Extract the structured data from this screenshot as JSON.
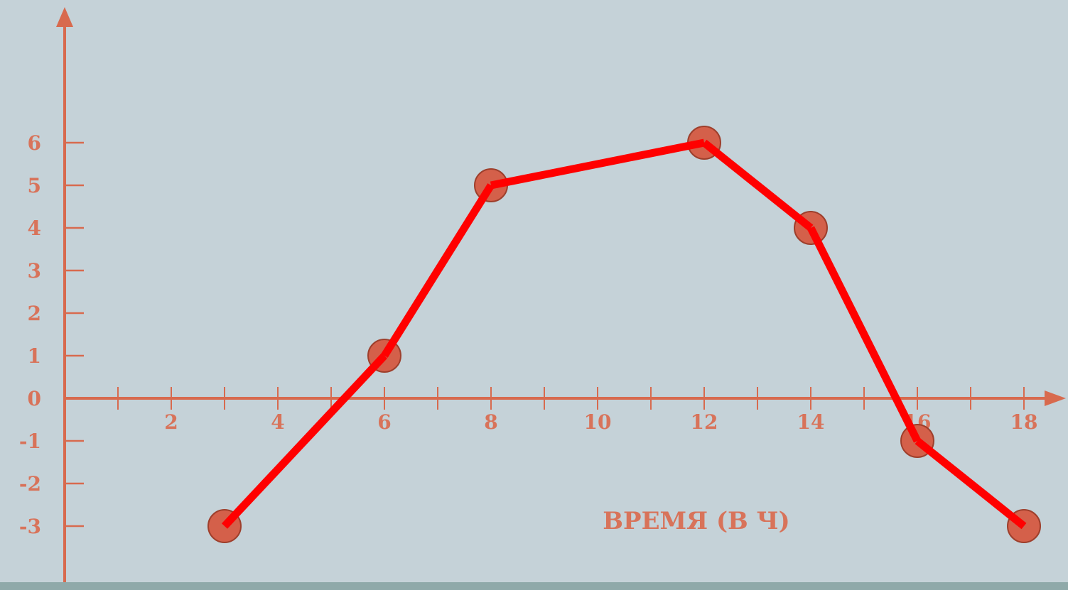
{
  "colors": {
    "background": "#c5d2d8",
    "axis": "#d86a4e",
    "line": "#ff0000",
    "marker_fill": "#d4604a",
    "marker_stroke": "#9e3f2c",
    "text": "#d8735a",
    "bottom_band": "#8fa9a9"
  },
  "chart_data": {
    "type": "line",
    "title": "",
    "xlabel": "ВРЕМЯ (В Ч)",
    "ylabel": "",
    "xlim": [
      0,
      18
    ],
    "ylim": [
      -3,
      6
    ],
    "x_tick_labels": [
      "2",
      "4",
      "6",
      "8",
      "10",
      "12",
      "14",
      "16",
      "18"
    ],
    "y_tick_labels": [
      "6",
      "5",
      "4",
      "3",
      "2",
      "1",
      "0",
      "-1",
      "-2",
      "-3"
    ],
    "grid": false,
    "legend": "none",
    "series": [
      {
        "x": [
          3,
          6,
          8,
          12,
          14,
          16,
          18
        ],
        "y": [
          -3,
          1,
          5,
          6,
          4,
          -1,
          -3
        ],
        "marker": "circle"
      }
    ]
  }
}
